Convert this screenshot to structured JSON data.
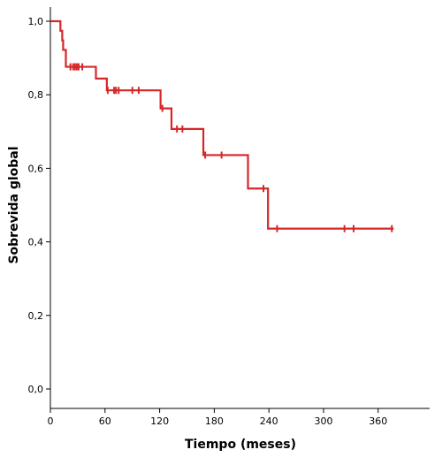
{
  "chart_data": {
    "type": "line",
    "xlabel": "Tiempo (meses)",
    "ylabel": "Sobrevida global",
    "xlim": [
      0,
      420
    ],
    "ylim": [
      -0.05,
      1.04
    ],
    "x_ticks": [
      0,
      60,
      120,
      180,
      240,
      300,
      360
    ],
    "y_ticks": [
      0.0,
      0.2,
      0.4,
      0.6,
      0.8,
      1.0
    ],
    "y_tick_labels": [
      "0,0",
      "0,2",
      "0,4",
      "0,6",
      "0,8",
      "1,0"
    ],
    "grid": false,
    "series": [
      {
        "line_color": "#d62728",
        "steps": [
          {
            "x": 0,
            "y": 1.0
          },
          {
            "x": 11,
            "y": 0.974
          },
          {
            "x": 13,
            "y": 0.948
          },
          {
            "x": 14,
            "y": 0.922
          },
          {
            "x": 17,
            "y": 0.876
          },
          {
            "x": 50,
            "y": 0.844
          },
          {
            "x": 62,
            "y": 0.812
          },
          {
            "x": 121,
            "y": 0.763
          },
          {
            "x": 133,
            "y": 0.707
          },
          {
            "x": 168,
            "y": 0.636
          },
          {
            "x": 217,
            "y": 0.545
          },
          {
            "x": 239,
            "y": 0.436
          },
          {
            "x": 377,
            "y": 0.436
          }
        ],
        "censored": [
          {
            "x": 22,
            "y": 0.876
          },
          {
            "x": 25,
            "y": 0.876
          },
          {
            "x": 27,
            "y": 0.876
          },
          {
            "x": 29,
            "y": 0.876
          },
          {
            "x": 31,
            "y": 0.876
          },
          {
            "x": 35,
            "y": 0.876
          },
          {
            "x": 63,
            "y": 0.812
          },
          {
            "x": 70,
            "y": 0.812
          },
          {
            "x": 72,
            "y": 0.812
          },
          {
            "x": 75,
            "y": 0.812
          },
          {
            "x": 90,
            "y": 0.812
          },
          {
            "x": 97,
            "y": 0.812
          },
          {
            "x": 123,
            "y": 0.763
          },
          {
            "x": 139,
            "y": 0.707
          },
          {
            "x": 145,
            "y": 0.707
          },
          {
            "x": 170,
            "y": 0.636
          },
          {
            "x": 188,
            "y": 0.636
          },
          {
            "x": 234,
            "y": 0.545
          },
          {
            "x": 249,
            "y": 0.436
          },
          {
            "x": 323,
            "y": 0.436
          },
          {
            "x": 333,
            "y": 0.436
          },
          {
            "x": 375,
            "y": 0.436
          }
        ]
      }
    ]
  }
}
